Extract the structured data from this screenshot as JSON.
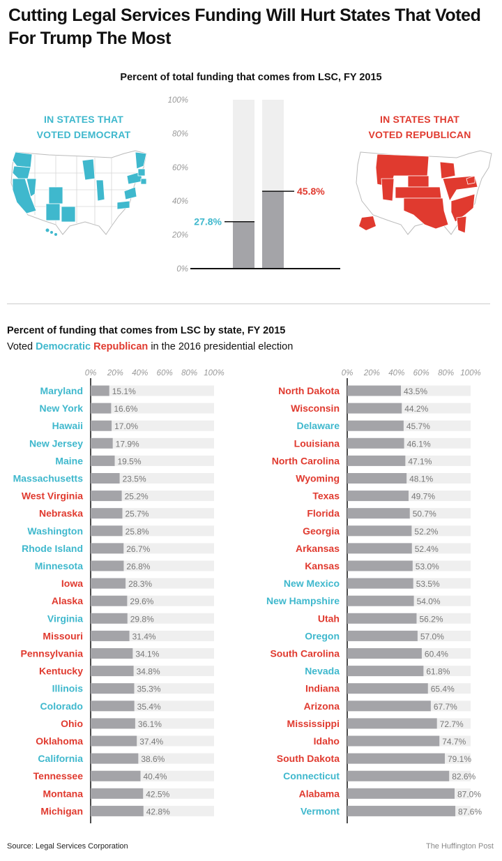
{
  "headline": "Cutting Legal Services Funding Will Hurt States That Voted For Trump The Most",
  "colors": {
    "democrat": "#3fb8cd",
    "republican": "#e03a2f",
    "bar": "#a4a4a8",
    "track": "#efefef"
  },
  "maps": {
    "democrat_label": [
      "IN STATES THAT",
      "VOTED DEMOCRAT"
    ],
    "republican_label": [
      "IN STATES THAT",
      "VOTED REPUBLICAN"
    ]
  },
  "chart_data": [
    {
      "type": "bar",
      "title": "Percent of total funding that comes from LSC, FY 2015",
      "categories": [
        "In states that voted Democrat",
        "In states that voted Republican"
      ],
      "values": [
        27.8,
        45.8
      ],
      "value_labels": [
        "27.8%",
        "45.8%"
      ],
      "ylim": [
        0,
        100
      ],
      "yticks": [
        "0%",
        "20%",
        "40%",
        "60%",
        "80%",
        "100%"
      ]
    },
    {
      "type": "bar",
      "orientation": "horizontal",
      "title": "Percent of funding that comes from LSC by state, FY 2015",
      "subtitle_prefix": "Voted",
      "subtitle_dem": "Democratic",
      "subtitle_rep": "Republican",
      "subtitle_suffix": "in the 2016 presidential election",
      "xlim": [
        0,
        100
      ],
      "xticks": [
        "0%",
        "20%",
        "40%",
        "60%",
        "80%",
        "100%"
      ],
      "panels": [
        {
          "states": [
            {
              "name": "Maryland",
              "value": 15.1,
              "party": "D"
            },
            {
              "name": "New York",
              "value": 16.6,
              "party": "D"
            },
            {
              "name": "Hawaii",
              "value": 17.0,
              "party": "D"
            },
            {
              "name": "New Jersey",
              "value": 17.9,
              "party": "D"
            },
            {
              "name": "Maine",
              "value": 19.5,
              "party": "D"
            },
            {
              "name": "Massachusetts",
              "value": 23.5,
              "party": "D"
            },
            {
              "name": "West Virginia",
              "value": 25.2,
              "party": "R"
            },
            {
              "name": "Nebraska",
              "value": 25.7,
              "party": "R"
            },
            {
              "name": "Washington",
              "value": 25.8,
              "party": "D"
            },
            {
              "name": "Rhode Island",
              "value": 26.7,
              "party": "D"
            },
            {
              "name": "Minnesota",
              "value": 26.8,
              "party": "D"
            },
            {
              "name": "Iowa",
              "value": 28.3,
              "party": "R"
            },
            {
              "name": "Alaska",
              "value": 29.6,
              "party": "R"
            },
            {
              "name": "Virginia",
              "value": 29.8,
              "party": "D"
            },
            {
              "name": "Missouri",
              "value": 31.4,
              "party": "R"
            },
            {
              "name": "Pennsylvania",
              "value": 34.1,
              "party": "R"
            },
            {
              "name": "Kentucky",
              "value": 34.8,
              "party": "R"
            },
            {
              "name": "Illinois",
              "value": 35.3,
              "party": "D"
            },
            {
              "name": "Colorado",
              "value": 35.4,
              "party": "D"
            },
            {
              "name": "Ohio",
              "value": 36.1,
              "party": "R"
            },
            {
              "name": "Oklahoma",
              "value": 37.4,
              "party": "R"
            },
            {
              "name": "California",
              "value": 38.6,
              "party": "D"
            },
            {
              "name": "Tennessee",
              "value": 40.4,
              "party": "R"
            },
            {
              "name": "Montana",
              "value": 42.5,
              "party": "R"
            },
            {
              "name": "Michigan",
              "value": 42.8,
              "party": "R"
            }
          ]
        },
        {
          "states": [
            {
              "name": "North Dakota",
              "value": 43.5,
              "party": "R"
            },
            {
              "name": "Wisconsin",
              "value": 44.2,
              "party": "R"
            },
            {
              "name": "Delaware",
              "value": 45.7,
              "party": "D"
            },
            {
              "name": "Louisiana",
              "value": 46.1,
              "party": "R"
            },
            {
              "name": "North Carolina",
              "value": 47.1,
              "party": "R"
            },
            {
              "name": "Wyoming",
              "value": 48.1,
              "party": "R"
            },
            {
              "name": "Texas",
              "value": 49.7,
              "party": "R"
            },
            {
              "name": "Florida",
              "value": 50.7,
              "party": "R"
            },
            {
              "name": "Georgia",
              "value": 52.2,
              "party": "R"
            },
            {
              "name": "Arkansas",
              "value": 52.4,
              "party": "R"
            },
            {
              "name": "Kansas",
              "value": 53.0,
              "party": "R"
            },
            {
              "name": "New Mexico",
              "value": 53.5,
              "party": "D"
            },
            {
              "name": "New Hampshire",
              "value": 54.0,
              "party": "D"
            },
            {
              "name": "Utah",
              "value": 56.2,
              "party": "R"
            },
            {
              "name": "Oregon",
              "value": 57.0,
              "party": "D"
            },
            {
              "name": "South Carolina",
              "value": 60.4,
              "party": "R"
            },
            {
              "name": "Nevada",
              "value": 61.8,
              "party": "D"
            },
            {
              "name": "Indiana",
              "value": 65.4,
              "party": "R"
            },
            {
              "name": "Arizona",
              "value": 67.7,
              "party": "R"
            },
            {
              "name": "Mississippi",
              "value": 72.7,
              "party": "R"
            },
            {
              "name": "Idaho",
              "value": 74.7,
              "party": "R"
            },
            {
              "name": "South Dakota",
              "value": 79.1,
              "party": "R"
            },
            {
              "name": "Connecticut",
              "value": 82.6,
              "party": "D"
            },
            {
              "name": "Alabama",
              "value": 87.0,
              "party": "R"
            },
            {
              "name": "Vermont",
              "value": 87.6,
              "party": "D"
            }
          ]
        }
      ]
    }
  ],
  "footer": {
    "source": "Source: Legal Services Corporation",
    "credit": "The Huffington Post"
  }
}
